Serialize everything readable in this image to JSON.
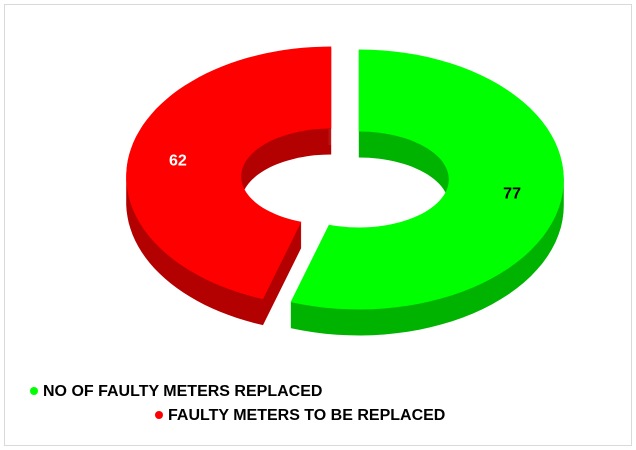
{
  "chart_data": {
    "type": "doughnut",
    "categories": [
      "NO OF FAULTY METERS REPLACED",
      "FAULTY METERS TO BE REPLACED"
    ],
    "values": [
      77,
      62
    ],
    "colors": [
      "#00ff00",
      "#ff0000"
    ],
    "legend": "bottom"
  }
}
